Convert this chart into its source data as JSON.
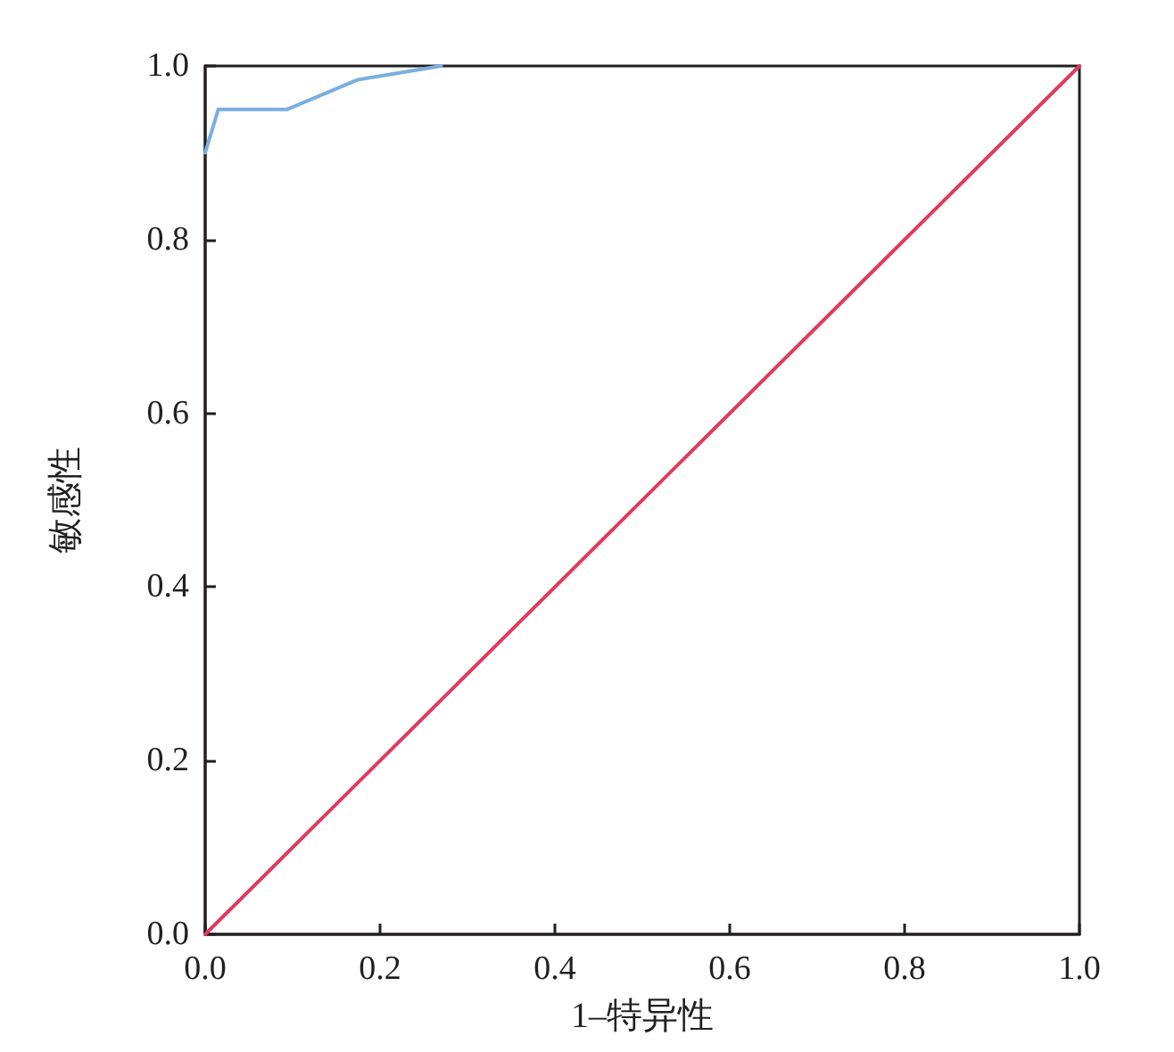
{
  "chart_data": {
    "type": "line",
    "xlabel": "1–特异性",
    "ylabel": "敏感性",
    "xlim": [
      0,
      1
    ],
    "ylim": [
      0,
      1
    ],
    "xticks": [
      {
        "value": 0,
        "label": "0.0"
      },
      0.2,
      0.4,
      0.6,
      0.8,
      {
        "value": 1,
        "label": "1.0"
      }
    ],
    "yticks": [
      {
        "value": 0,
        "label": "0.0"
      },
      0.2,
      0.4,
      0.6,
      0.8,
      {
        "value": 1,
        "label": "1.0"
      }
    ],
    "marker": "none",
    "series": [
      {
        "color": "#7aaee0",
        "x": [
          0,
          0.015,
          0.094,
          0.174,
          0.27
        ],
        "values": [
          0.9,
          0.95,
          0.95,
          0.984,
          1.0
        ]
      },
      {
        "color": "#e03a5c",
        "x": [
          0,
          1
        ],
        "values": [
          0,
          1
        ]
      }
    ]
  }
}
